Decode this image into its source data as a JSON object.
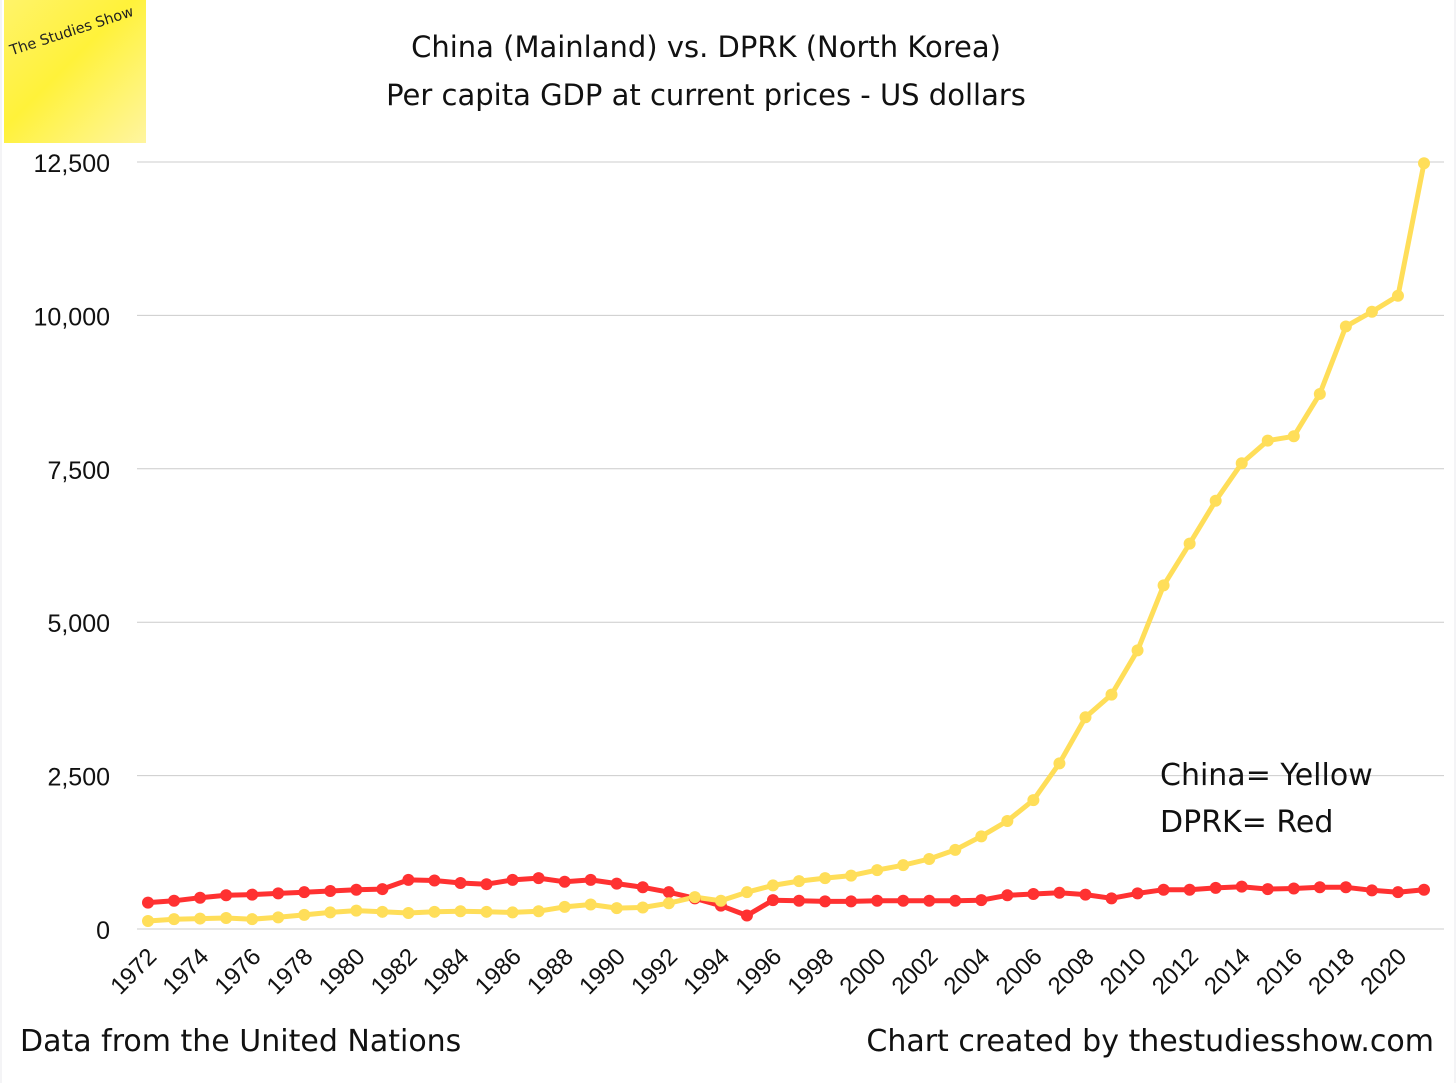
{
  "logo": {
    "text": "The Studies Show"
  },
  "title_line1": "China (Mainland) vs. DPRK (North Korea)",
  "title_line2": "Per capita GDP at current prices - US dollars",
  "legend": {
    "line1": "China= Yellow",
    "line2": "DPRK= Red"
  },
  "footer": {
    "left": "Data from the United Nations",
    "right": "Chart created by thestudiesshow.com"
  },
  "colors": {
    "china": "#ffde59",
    "dprk": "#ff3131",
    "grid": "#cccccc"
  },
  "chart_data": {
    "type": "line",
    "title": "China (Mainland) vs. DPRK (North Korea) Per capita GDP at current prices - US dollars",
    "xlabel": "",
    "ylabel": "",
    "ylim": [
      0,
      12500
    ],
    "yticks": [
      0,
      2500,
      5000,
      7500,
      10000,
      12500
    ],
    "ytick_labels": [
      "0",
      "2,500",
      "5,000",
      "7,500",
      "10,000",
      "12,500"
    ],
    "grid": true,
    "legend_placement": "bottom-right",
    "x": [
      1972,
      1973,
      1974,
      1975,
      1976,
      1977,
      1978,
      1979,
      1980,
      1981,
      1982,
      1983,
      1984,
      1985,
      1986,
      1987,
      1988,
      1989,
      1990,
      1991,
      1992,
      1993,
      1994,
      1995,
      1996,
      1997,
      1998,
      1999,
      2000,
      2001,
      2002,
      2003,
      2004,
      2005,
      2006,
      2007,
      2008,
      2009,
      2010,
      2011,
      2012,
      2013,
      2014,
      2015,
      2016,
      2017,
      2018,
      2019,
      2020,
      2021
    ],
    "xtick_labels": [
      "1972",
      "1974",
      "1976",
      "1978",
      "1980",
      "1982",
      "1984",
      "1986",
      "1988",
      "1990",
      "1992",
      "1994",
      "1996",
      "1998",
      "2000",
      "2002",
      "2004",
      "2006",
      "2008",
      "2010",
      "2012",
      "2014",
      "2016",
      "2018",
      "2020"
    ],
    "series": [
      {
        "name": "China",
        "values": [
          130,
          160,
          170,
          180,
          160,
          190,
          230,
          270,
          300,
          280,
          260,
          280,
          290,
          280,
          270,
          290,
          360,
          400,
          340,
          350,
          420,
          520,
          460,
          600,
          710,
          780,
          830,
          870,
          960,
          1040,
          1140,
          1290,
          1510,
          1760,
          2100,
          2700,
          3450,
          3820,
          4540,
          5600,
          6280,
          6980,
          7590,
          7960,
          8030,
          8720,
          9820,
          10060,
          10320,
          12480
        ]
      },
      {
        "name": "DPRK",
        "values": [
          430,
          460,
          510,
          550,
          560,
          580,
          600,
          620,
          640,
          650,
          800,
          790,
          750,
          730,
          800,
          830,
          770,
          800,
          740,
          680,
          600,
          500,
          380,
          220,
          470,
          460,
          450,
          450,
          460,
          460,
          460,
          460,
          470,
          550,
          570,
          590,
          560,
          500,
          580,
          640,
          640,
          670,
          690,
          650,
          660,
          680,
          680,
          630,
          600,
          640
        ]
      }
    ]
  }
}
